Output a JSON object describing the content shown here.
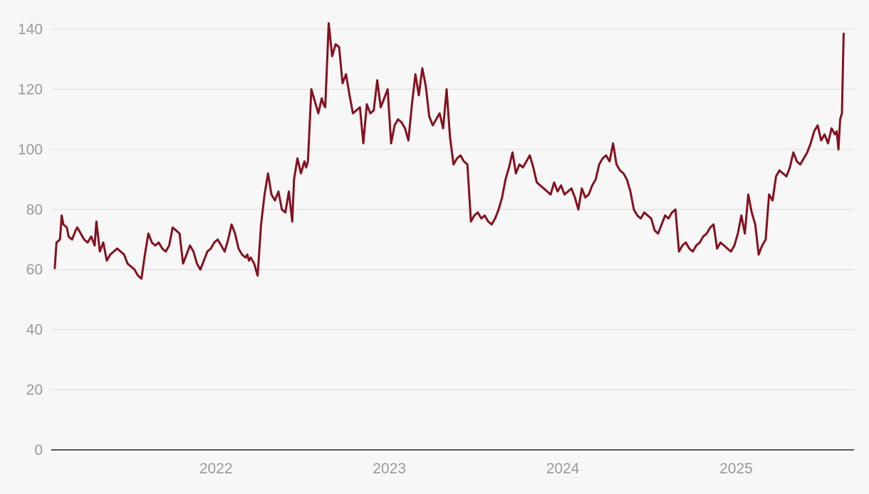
{
  "chart_data": {
    "type": "line",
    "title": "",
    "xlabel": "",
    "ylabel": "",
    "ylim": [
      0,
      140
    ],
    "xlim": [
      2021.05,
      2025.68
    ],
    "grid": true,
    "legend": "none",
    "y_ticks": [
      0,
      20,
      40,
      60,
      80,
      100,
      120,
      140
    ],
    "x_ticks": [
      {
        "value": 2022,
        "label": "2022"
      },
      {
        "value": 2023,
        "label": "2023"
      },
      {
        "value": 2024,
        "label": "2024"
      },
      {
        "value": 2025,
        "label": "2025"
      }
    ],
    "colors": {
      "series": "#85101e",
      "grid": "#dcdcdc",
      "axis": "#222222",
      "tick_text": "#9a9a9a",
      "background": "#f7f7f7"
    },
    "series": [
      {
        "x": [
          2021.07,
          2021.08,
          2021.1,
          2021.11,
          2021.12,
          2021.14,
          2021.15,
          2021.17,
          2021.19,
          2021.2,
          2021.22,
          2021.24,
          2021.26,
          2021.28,
          2021.3,
          2021.31,
          2021.33,
          2021.35,
          2021.37,
          2021.39,
          2021.41,
          2021.43,
          2021.45,
          2021.47,
          2021.49,
          2021.51,
          2021.53,
          2021.55,
          2021.57,
          2021.59,
          2021.61,
          2021.63,
          2021.65,
          2021.67,
          2021.69,
          2021.71,
          2021.73,
          2021.75,
          2021.77,
          2021.79,
          2021.81,
          2021.83,
          2021.85,
          2021.87,
          2021.89,
          2021.91,
          2021.93,
          2021.95,
          2021.97,
          2021.99,
          2022.01,
          2022.03,
          2022.05,
          2022.07,
          2022.09,
          2022.11,
          2022.13,
          2022.15,
          2022.17,
          2022.18,
          2022.19,
          2022.2,
          2022.22,
          2022.24,
          2022.26,
          2022.28,
          2022.3,
          2022.32,
          2022.34,
          2022.36,
          2022.38,
          2022.4,
          2022.42,
          2022.44,
          2022.45,
          2022.47,
          2022.49,
          2022.51,
          2022.52,
          2022.53,
          2022.55,
          2022.57,
          2022.59,
          2022.61,
          2022.62,
          2022.63,
          2022.65,
          2022.67,
          2022.69,
          2022.71,
          2022.73,
          2022.75,
          2022.77,
          2022.79,
          2022.81,
          2022.83,
          2022.85,
          2022.87,
          2022.89,
          2022.91,
          2022.93,
          2022.95,
          2022.97,
          2022.99,
          2023.01,
          2023.03,
          2023.05,
          2023.07,
          2023.09,
          2023.11,
          2023.13,
          2023.15,
          2023.17,
          2023.19,
          2023.21,
          2023.23,
          2023.25,
          2023.27,
          2023.29,
          2023.31,
          2023.33,
          2023.35,
          2023.37,
          2023.39,
          2023.41,
          2023.43,
          2023.45,
          2023.47,
          2023.49,
          2023.51,
          2023.53,
          2023.55,
          2023.57,
          2023.59,
          2023.61,
          2023.63,
          2023.65,
          2023.67,
          2023.69,
          2023.71,
          2023.73,
          2023.75,
          2023.77,
          2023.79,
          2023.81,
          2023.83,
          2023.85,
          2023.87,
          2023.89,
          2023.91,
          2023.93,
          2023.95,
          2023.97,
          2023.99,
          2024.01,
          2024.03,
          2024.05,
          2024.07,
          2024.09,
          2024.11,
          2024.13,
          2024.15,
          2024.17,
          2024.19,
          2024.21,
          2024.23,
          2024.25,
          2024.27,
          2024.29,
          2024.31,
          2024.33,
          2024.35,
          2024.37,
          2024.39,
          2024.41,
          2024.43,
          2024.45,
          2024.47,
          2024.49,
          2024.51,
          2024.53,
          2024.55,
          2024.57,
          2024.59,
          2024.61,
          2024.63,
          2024.65,
          2024.67,
          2024.69,
          2024.71,
          2024.73,
          2024.75,
          2024.77,
          2024.79,
          2024.81,
          2024.83,
          2024.85,
          2024.87,
          2024.89,
          2024.91,
          2024.93,
          2024.95,
          2024.97,
          2024.99,
          2025.01,
          2025.03,
          2025.05,
          2025.07,
          2025.09,
          2025.11,
          2025.13,
          2025.15,
          2025.17,
          2025.19,
          2025.21,
          2025.23,
          2025.25,
          2025.27,
          2025.29,
          2025.31,
          2025.33,
          2025.35,
          2025.37,
          2025.39,
          2025.41,
          2025.43,
          2025.45,
          2025.47,
          2025.49,
          2025.51,
          2025.53,
          2025.55,
          2025.57,
          2025.58,
          2025.59,
          2025.6,
          2025.61,
          2025.62
        ],
        "y": [
          60.5,
          69,
          70,
          78,
          75,
          74,
          71,
          70,
          73,
          74,
          72,
          70,
          69,
          71,
          68,
          76,
          66,
          69,
          63,
          65,
          66,
          67,
          66,
          65,
          62,
          61,
          60,
          58,
          57,
          65,
          72,
          69,
          68,
          69,
          67,
          66,
          68,
          74,
          73,
          72,
          62,
          65,
          68,
          66,
          62,
          60,
          63,
          66,
          67,
          69,
          70,
          68,
          66,
          70,
          75,
          72,
          67,
          65,
          64,
          65,
          63,
          64,
          62,
          58,
          75,
          85,
          92,
          85,
          83,
          86,
          80,
          79,
          86,
          76,
          90,
          97,
          92,
          96,
          94,
          96,
          120,
          116,
          112,
          117,
          115,
          114,
          142,
          131,
          135,
          134,
          122,
          125,
          118,
          112,
          113,
          114,
          102,
          115,
          112,
          113,
          123,
          114,
          117,
          120,
          102,
          108,
          110,
          109,
          107,
          103,
          115,
          125,
          118,
          127,
          121,
          111,
          108,
          110,
          112,
          107,
          120,
          104,
          95,
          97,
          98,
          96,
          95,
          76,
          78,
          79,
          77,
          78,
          76,
          75,
          77,
          80,
          84,
          90,
          94,
          99,
          92,
          95,
          94,
          96,
          98,
          94,
          89,
          88,
          87,
          86,
          85,
          89,
          86,
          88,
          85,
          86,
          87,
          84,
          80,
          87,
          84,
          85,
          88,
          90,
          95,
          97,
          98,
          96,
          102,
          95,
          93,
          92,
          90,
          86,
          80,
          78,
          77,
          79,
          78,
          77,
          73,
          72,
          75,
          78,
          77,
          79,
          80,
          66,
          68,
          69,
          67,
          66,
          68,
          69,
          71,
          72,
          74,
          75,
          67,
          69,
          68,
          67,
          66,
          68,
          72,
          78,
          72,
          85,
          79,
          75,
          65,
          68,
          70,
          85,
          83,
          91,
          93,
          92,
          91,
          94,
          99,
          96,
          95,
          97,
          99,
          102,
          106,
          108,
          103,
          105,
          102,
          107,
          105,
          106,
          100,
          110,
          112,
          138.5
        ]
      }
    ]
  }
}
